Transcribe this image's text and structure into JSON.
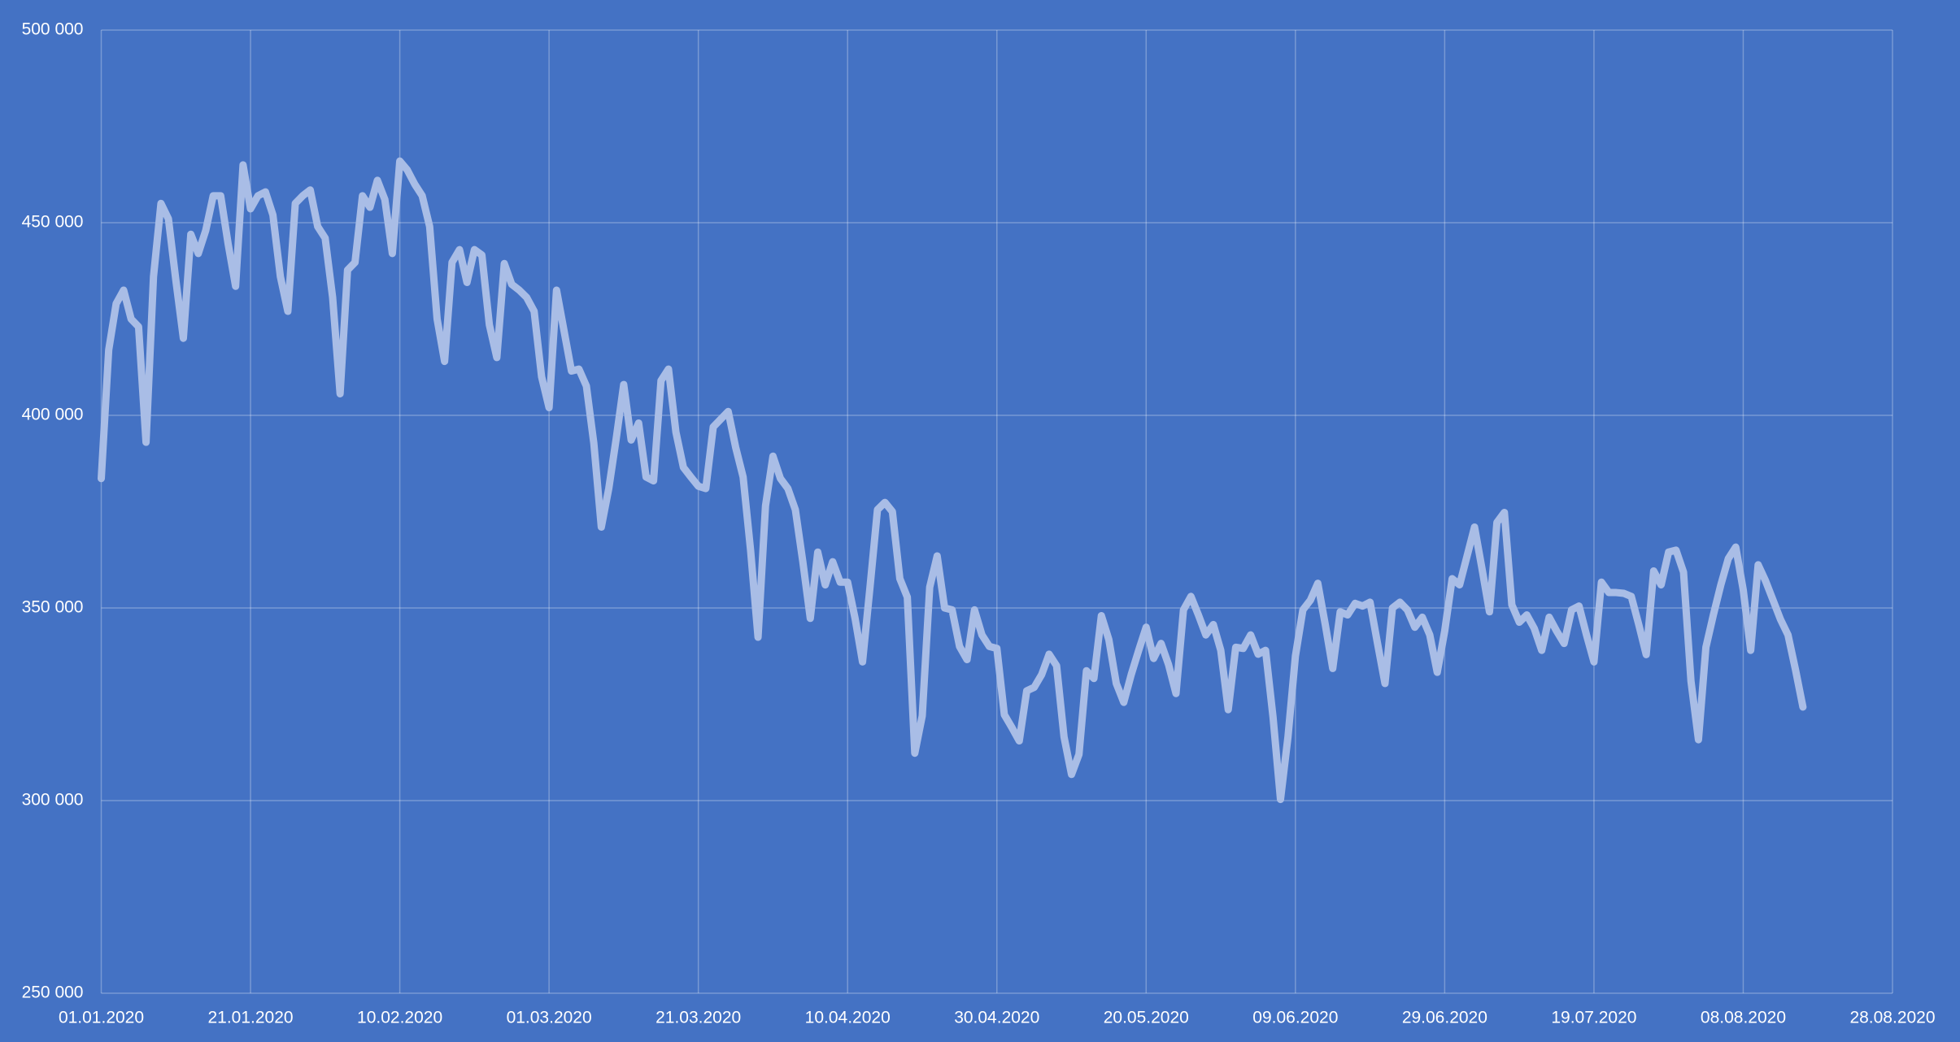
{
  "chart_data": {
    "type": "line",
    "x": [
      "01.01.2020",
      "02.01.2020",
      "03.01.2020",
      "04.01.2020",
      "05.01.2020",
      "06.01.2020",
      "07.01.2020",
      "08.01.2020",
      "09.01.2020",
      "10.01.2020",
      "11.01.2020",
      "12.01.2020",
      "13.01.2020",
      "14.01.2020",
      "15.01.2020",
      "16.01.2020",
      "17.01.2020",
      "18.01.2020",
      "19.01.2020",
      "20.01.2020",
      "21.01.2020",
      "22.01.2020",
      "23.01.2020",
      "24.01.2020",
      "25.01.2020",
      "26.01.2020",
      "27.01.2020",
      "28.01.2020",
      "29.01.2020",
      "30.01.2020",
      "31.01.2020",
      "01.02.2020",
      "02.02.2020",
      "03.02.2020",
      "04.02.2020",
      "05.02.2020",
      "06.02.2020",
      "07.02.2020",
      "08.02.2020",
      "09.02.2020",
      "10.02.2020",
      "11.02.2020",
      "12.02.2020",
      "13.02.2020",
      "14.02.2020",
      "15.02.2020",
      "16.02.2020",
      "17.02.2020",
      "18.02.2020",
      "19.02.2020",
      "20.02.2020",
      "21.02.2020",
      "22.02.2020",
      "23.02.2020",
      "24.02.2020",
      "25.02.2020",
      "26.02.2020",
      "27.02.2020",
      "28.02.2020",
      "29.02.2020",
      "01.03.2020",
      "02.03.2020",
      "03.03.2020",
      "04.03.2020",
      "05.03.2020",
      "06.03.2020",
      "07.03.2020",
      "08.03.2020",
      "09.03.2020",
      "10.03.2020",
      "11.03.2020",
      "12.03.2020",
      "13.03.2020",
      "14.03.2020",
      "15.03.2020",
      "16.03.2020",
      "17.03.2020",
      "18.03.2020",
      "19.03.2020",
      "20.03.2020",
      "21.03.2020",
      "22.03.2020",
      "23.03.2020",
      "24.03.2020",
      "25.03.2020",
      "26.03.2020",
      "27.03.2020",
      "28.03.2020",
      "29.03.2020",
      "30.03.2020",
      "31.03.2020",
      "01.04.2020",
      "02.04.2020",
      "03.04.2020",
      "04.04.2020",
      "05.04.2020",
      "06.04.2020",
      "07.04.2020",
      "08.04.2020",
      "09.04.2020",
      "10.04.2020",
      "11.04.2020",
      "12.04.2020",
      "13.04.2020",
      "14.04.2020",
      "15.04.2020",
      "16.04.2020",
      "17.04.2020",
      "18.04.2020",
      "19.04.2020",
      "20.04.2020",
      "21.04.2020",
      "22.04.2020",
      "23.04.2020",
      "24.04.2020",
      "25.04.2020",
      "26.04.2020",
      "27.04.2020",
      "28.04.2020",
      "29.04.2020",
      "30.04.2020",
      "01.05.2020",
      "02.05.2020",
      "03.05.2020",
      "04.05.2020",
      "05.05.2020",
      "06.05.2020",
      "07.05.2020",
      "08.05.2020",
      "09.05.2020",
      "10.05.2020",
      "11.05.2020",
      "12.05.2020",
      "13.05.2020",
      "14.05.2020",
      "15.05.2020",
      "16.05.2020",
      "17.05.2020",
      "18.05.2020",
      "19.05.2020",
      "20.05.2020",
      "21.05.2020",
      "22.05.2020",
      "23.05.2020",
      "24.05.2020",
      "25.05.2020",
      "26.05.2020",
      "27.05.2020",
      "28.05.2020",
      "29.05.2020",
      "30.05.2020",
      "31.05.2020",
      "01.06.2020",
      "02.06.2020",
      "03.06.2020",
      "04.06.2020",
      "05.06.2020",
      "06.06.2020",
      "07.06.2020",
      "08.06.2020",
      "09.06.2020",
      "10.06.2020",
      "11.06.2020",
      "12.06.2020",
      "13.06.2020",
      "14.06.2020",
      "15.06.2020",
      "16.06.2020",
      "17.06.2020",
      "18.06.2020",
      "19.06.2020",
      "20.06.2020",
      "21.06.2020",
      "22.06.2020",
      "23.06.2020",
      "24.06.2020",
      "25.06.2020",
      "26.06.2020",
      "27.06.2020",
      "28.06.2020",
      "29.06.2020",
      "30.06.2020",
      "01.07.2020",
      "02.07.2020",
      "03.07.2020",
      "04.07.2020",
      "05.07.2020",
      "06.07.2020",
      "07.07.2020",
      "08.07.2020",
      "09.07.2020",
      "10.07.2020",
      "11.07.2020",
      "12.07.2020",
      "13.07.2020",
      "14.07.2020",
      "15.07.2020",
      "16.07.2020",
      "17.07.2020",
      "18.07.2020",
      "19.07.2020",
      "20.07.2020",
      "21.07.2020",
      "22.07.2020",
      "23.07.2020",
      "24.07.2020",
      "25.07.2020",
      "26.07.2020",
      "27.07.2020",
      "28.07.2020",
      "29.07.2020",
      "30.07.2020",
      "31.07.2020",
      "01.08.2020",
      "02.08.2020",
      "03.08.2020",
      "04.08.2020",
      "05.08.2020",
      "06.08.2020",
      "07.08.2020",
      "08.08.2020",
      "09.08.2020",
      "10.08.2020",
      "11.08.2020",
      "12.08.2020",
      "13.08.2020",
      "14.08.2020",
      "15.08.2020",
      "16.08.2020"
    ],
    "values": [
      383600,
      417000,
      429000,
      432500,
      425000,
      423000,
      393000,
      436000,
      455000,
      451000,
      435000,
      420000,
      447000,
      442000,
      448000,
      457000,
      457000,
      444500,
      433500,
      465000,
      453600,
      457000,
      458000,
      452000,
      436000,
      427000,
      455000,
      457000,
      458500,
      449000,
      446000,
      430600,
      405600,
      437700,
      439700,
      457000,
      454000,
      461000,
      456000,
      442000,
      466000,
      463700,
      460000,
      457000,
      449000,
      425000,
      414000,
      439700,
      443000,
      434500,
      443000,
      441600,
      423500,
      415000,
      439400,
      434000,
      432500,
      430600,
      427000,
      410000,
      402000,
      432500,
      422000,
      411500,
      412000,
      407600,
      392700,
      371000,
      381000,
      394000,
      408000,
      393600,
      398000,
      384000,
      383000,
      409000,
      412000,
      395600,
      386500,
      384000,
      381600,
      381000,
      397000,
      399000,
      401000,
      391700,
      384000,
      365000,
      342400,
      376500,
      389400,
      383600,
      381000,
      375500,
      362000,
      347300,
      364500,
      356000,
      362000,
      356700,
      356700,
      347300,
      336000,
      355400,
      375500,
      377400,
      375000,
      357600,
      352800,
      312300,
      322000,
      355400,
      363500,
      350000,
      349500,
      340000,
      336600,
      349500,
      343000,
      340000,
      339500,
      322300,
      319000,
      315500,
      328500,
      329400,
      332700,
      338000,
      335000,
      316500,
      306800,
      312000,
      333700,
      331700,
      348000,
      341800,
      330400,
      325500,
      332700,
      339000,
      345000,
      336900,
      340800,
      335300,
      327800,
      349500,
      353000,
      348200,
      343000,
      345700,
      339000,
      323600,
      339800,
      339500,
      343000,
      338000,
      339000,
      321700,
      300300,
      316500,
      337500,
      349500,
      352000,
      356400,
      345700,
      334300,
      349000,
      348200,
      351200,
      350500,
      351500,
      340800,
      330400,
      350000,
      351500,
      349500,
      345000,
      347600,
      343000,
      333300,
      344000,
      357600,
      356000,
      363500,
      371000,
      360200,
      349000,
      372200,
      374800,
      350800,
      346300,
      348200,
      344700,
      339000,
      347600,
      344000,
      340800,
      349500,
      350500,
      343000,
      336000,
      356700,
      354000,
      354000,
      353800,
      353000,
      345700,
      337900,
      359600,
      356000,
      364500,
      365000,
      359300,
      331000,
      315800,
      339800,
      348200,
      356000,
      362800,
      365800,
      354700,
      339000,
      361200,
      357000,
      352000,
      347000,
      343000,
      334000,
      324300
    ],
    "color": "#a9bde6",
    "xlim": [
      "01.01.2020",
      "28.08.2020"
    ],
    "xticks": [
      "01.01.2020",
      "21.01.2020",
      "10.02.2020",
      "01.03.2020",
      "21.03.2020",
      "10.04.2020",
      "30.04.2020",
      "20.05.2020",
      "09.06.2020",
      "29.06.2020",
      "19.07.2020",
      "08.08.2020",
      "28.08.2020"
    ],
    "ylim": [
      250000,
      500000
    ],
    "yticks": [
      {
        "value": 250000,
        "label": "250 000"
      },
      {
        "value": 300000,
        "label": "300 000"
      },
      {
        "value": 350000,
        "label": "350 000"
      },
      {
        "value": 400000,
        "label": "400 000"
      },
      {
        "value": 450000,
        "label": "450 000"
      },
      {
        "value": 500000,
        "label": "500 000"
      }
    ],
    "grid": true
  }
}
